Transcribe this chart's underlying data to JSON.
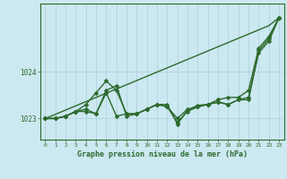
{
  "xlabel": "Graphe pression niveau de la mer (hPa)",
  "hours": [
    0,
    1,
    2,
    3,
    4,
    5,
    6,
    7,
    8,
    9,
    10,
    11,
    12,
    13,
    14,
    15,
    16,
    17,
    18,
    19,
    20,
    21,
    22,
    23
  ],
  "series_smooth": [
    1023.0,
    1023.09,
    1023.18,
    1023.27,
    1023.36,
    1023.45,
    1023.54,
    1023.63,
    1023.72,
    1023.81,
    1023.9,
    1023.99,
    1024.08,
    1024.17,
    1024.26,
    1024.35,
    1024.44,
    1024.53,
    1024.62,
    1024.71,
    1024.8,
    1024.89,
    1024.98,
    1025.15
  ],
  "series1": [
    1023.0,
    1023.0,
    1023.05,
    1023.15,
    1023.2,
    1023.1,
    1023.55,
    1023.05,
    1023.1,
    1023.1,
    1023.2,
    1023.3,
    1023.25,
    1022.92,
    1023.15,
    1023.25,
    1023.3,
    1023.35,
    1023.3,
    1023.4,
    1023.45,
    1024.4,
    1024.65,
    1025.15
  ],
  "series2": [
    1023.0,
    1023.0,
    1023.05,
    1023.15,
    1023.3,
    1023.55,
    1023.8,
    1023.6,
    1023.1,
    1023.1,
    1023.2,
    1023.3,
    1023.25,
    1023.0,
    1023.2,
    1023.25,
    1023.3,
    1023.4,
    1023.45,
    1023.45,
    1023.6,
    1024.5,
    1024.75,
    1025.15
  ],
  "series3": [
    1023.0,
    1023.0,
    1023.05,
    1023.15,
    1023.15,
    1023.1,
    1023.6,
    1023.7,
    1023.05,
    1023.1,
    1023.2,
    1023.3,
    1023.3,
    1022.88,
    1023.18,
    1023.28,
    1023.3,
    1023.35,
    1023.3,
    1023.4,
    1023.4,
    1024.45,
    1024.7,
    1025.15
  ],
  "line_color": "#2d6a2d",
  "bg_color": "#cce8f0",
  "grid_color": "#aacfdc",
  "ylim_min": 1022.55,
  "ylim_max": 1025.45,
  "yticks": [
    1023,
    1024
  ],
  "marker": "D",
  "marker_size": 2.5,
  "linewidth": 1.0
}
